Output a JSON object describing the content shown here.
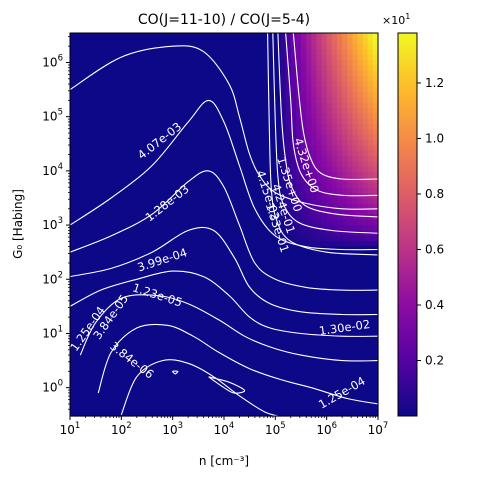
{
  "chart_data": {
    "type": "heatmap",
    "title": "CO(J=11-10) / CO(J=5-4)",
    "xlabel": "n [cm⁻³]",
    "ylabel": "G₀ [Habing]",
    "xscale": "log",
    "yscale": "log",
    "xlim": [
      10,
      10000000
    ],
    "ylim": [
      0.3,
      3500000
    ],
    "x_ticks": [
      {
        "value": 10,
        "base": "10",
        "exp": "1"
      },
      {
        "value": 100,
        "base": "10",
        "exp": "2"
      },
      {
        "value": 1000,
        "base": "10",
        "exp": "3"
      },
      {
        "value": 10000,
        "base": "10",
        "exp": "4"
      },
      {
        "value": 100000,
        "base": "10",
        "exp": "5"
      },
      {
        "value": 1000000,
        "base": "10",
        "exp": "6"
      },
      {
        "value": 10000000,
        "base": "10",
        "exp": "7"
      }
    ],
    "y_ticks": [
      {
        "value": 1,
        "base": "10",
        "exp": "0"
      },
      {
        "value": 10,
        "base": "10",
        "exp": "1"
      },
      {
        "value": 100,
        "base": "10",
        "exp": "2"
      },
      {
        "value": 1000,
        "base": "10",
        "exp": "3"
      },
      {
        "value": 10000,
        "base": "10",
        "exp": "4"
      },
      {
        "value": 100000,
        "base": "10",
        "exp": "5"
      },
      {
        "value": 1000000,
        "base": "10",
        "exp": "6"
      }
    ],
    "colormap": "plasma",
    "colorbar": {
      "multiplier_base": "×10",
      "multiplier_exp": "1",
      "range": [
        0.0,
        1.38
      ],
      "ticks": [
        "0.2",
        "0.4",
        "0.6",
        "0.8",
        "1.0",
        "1.2"
      ],
      "tick_values": [
        0.2,
        0.4,
        0.6,
        0.8,
        1.0,
        1.2
      ]
    },
    "contour_labels": [
      {
        "text": "4.07e-03",
        "logn": 2.75,
        "logg": 4.55,
        "angle": -38
      },
      {
        "text": "1.28e-03",
        "logn": 2.9,
        "logg": 3.4,
        "angle": -38
      },
      {
        "text": "3.99e-04",
        "logn": 2.8,
        "logg": 2.35,
        "angle": -18
      },
      {
        "text": "1.23e-05",
        "logn": 2.7,
        "logg": 1.7,
        "angle": 18
      },
      {
        "text": "1.25e-04",
        "logn": 1.35,
        "logg": 1.08,
        "angle": -55
      },
      {
        "text": "3.84e-05",
        "logn": 1.8,
        "logg": 1.3,
        "angle": -55
      },
      {
        "text": "3.84e-06",
        "logn": 2.2,
        "logg": 0.5,
        "angle": 38
      },
      {
        "text": "4.32e+00",
        "logn": 5.6,
        "logg": 4.1,
        "angle": 72
      },
      {
        "text": "1.35e+00",
        "logn": 5.27,
        "logg": 3.75,
        "angle": 72
      },
      {
        "text": "4.24e-01",
        "logn": 5.15,
        "logg": 3.3,
        "angle": 72
      },
      {
        "text": "1.33e-01",
        "logn": 5.03,
        "logg": 2.95,
        "angle": 72
      },
      {
        "text": "4.15e-02",
        "logn": 4.85,
        "logg": 3.55,
        "angle": 72
      },
      {
        "text": "1.30e-02",
        "logn": 6.35,
        "logg": 1.1,
        "angle": -8
      },
      {
        "text": "1.25e-04",
        "logn": 6.3,
        "logg": -0.1,
        "angle": -30
      }
    ]
  }
}
